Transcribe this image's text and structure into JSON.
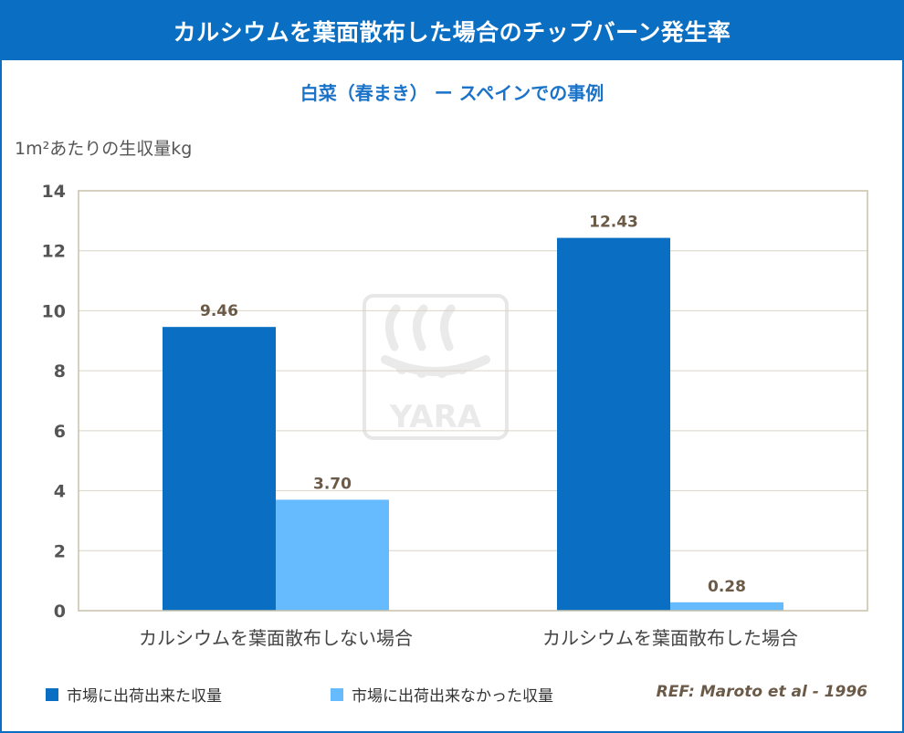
{
  "header": {
    "title": "カルシウムを葉面散布した場合のチップバーン発生率"
  },
  "colors": {
    "header_bg": "#0a6fc2",
    "series_marketable": "#0a6fc2",
    "series_unmarketable": "#66bbff",
    "label_text": "#6b5a48",
    "axis_border": "#c8c0a8"
  },
  "chart_data": {
    "type": "bar",
    "title": "",
    "subtitle": "白菜（春まき） ー スペインでの事例",
    "ylabel": "1m²あたりの生収量kg",
    "xlabel": "",
    "ylim": [
      0,
      14
    ],
    "yticks": [
      0,
      2,
      4,
      6,
      8,
      10,
      12,
      14
    ],
    "categories": [
      "カルシウムを葉面散布しない場合",
      "カルシウムを葉面散布した場合"
    ],
    "series": [
      {
        "name": "市場に出荷出来た収量",
        "values": [
          9.46,
          12.43
        ],
        "labels": [
          "9.46",
          "12.43"
        ]
      },
      {
        "name": "市場に出荷出来なかった収量",
        "values": [
          3.7,
          0.28
        ],
        "labels": [
          "3.70",
          "0.28"
        ]
      }
    ],
    "grid": true,
    "legend_position": "bottom",
    "reference": "REF: Maroto et al - 1996",
    "watermark": "YARA"
  }
}
